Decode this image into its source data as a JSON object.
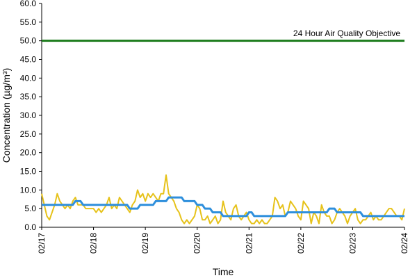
{
  "chart_data": {
    "type": "line",
    "title": "",
    "xlabel": "Time",
    "ylabel": "Concentration (µg/m³)",
    "ylim": [
      0,
      60
    ],
    "yticks": [
      "0.0",
      "5.0",
      "10.0",
      "15.0",
      "20.0",
      "25.0",
      "30.0",
      "35.0",
      "40.0",
      "45.0",
      "50.0",
      "55.0",
      "60.0"
    ],
    "xticks": [
      "02/17",
      "02/18",
      "02/19",
      "02/20",
      "02/21",
      "02/22",
      "02/23",
      "02/24"
    ],
    "grid": false,
    "legend": "none",
    "objective": {
      "label": "24 Hour Air Quality Objective",
      "value": 50,
      "color": "#1a7a1a"
    },
    "series": [
      {
        "color": "#e6c21a",
        "x": [
          0,
          0.05,
          0.1,
          0.15,
          0.2,
          0.25,
          0.3,
          0.35,
          0.4,
          0.45,
          0.5,
          0.55,
          0.6,
          0.65,
          0.7,
          0.75,
          0.8,
          0.85,
          0.9,
          0.95,
          1.0,
          1.05,
          1.1,
          1.15,
          1.2,
          1.25,
          1.3,
          1.35,
          1.4,
          1.45,
          1.5,
          1.55,
          1.6,
          1.65,
          1.7,
          1.75,
          1.8,
          1.85,
          1.9,
          1.95,
          2.0,
          2.05,
          2.1,
          2.15,
          2.2,
          2.25,
          2.3,
          2.35,
          2.4,
          2.45,
          2.5,
          2.55,
          2.6,
          2.65,
          2.7,
          2.75,
          2.8,
          2.85,
          2.9,
          2.95,
          3.0,
          3.05,
          3.1,
          3.15,
          3.2,
          3.25,
          3.3,
          3.35,
          3.4,
          3.45,
          3.5,
          3.55,
          3.6,
          3.65,
          3.7,
          3.75,
          3.8,
          3.85,
          3.9,
          3.95,
          4.0,
          4.05,
          4.1,
          4.15,
          4.2,
          4.25,
          4.3,
          4.35,
          4.4,
          4.45,
          4.5,
          4.55,
          4.6,
          4.65,
          4.7,
          4.75,
          4.8,
          4.85,
          4.9,
          4.95,
          5.0,
          5.05,
          5.1,
          5.15,
          5.2,
          5.25,
          5.3,
          5.35,
          5.4,
          5.45,
          5.5,
          5.55,
          5.6,
          5.65,
          5.7,
          5.75,
          5.8,
          5.85,
          5.9,
          5.95,
          6.0,
          6.05,
          6.1,
          6.15,
          6.2,
          6.25,
          6.3,
          6.35,
          6.4,
          6.45,
          6.5,
          6.55,
          6.6,
          6.65,
          6.7,
          6.75,
          6.8,
          6.85,
          6.9,
          6.95,
          7.0
        ],
        "values": [
          9,
          6,
          3,
          2,
          4,
          6,
          9,
          7,
          6,
          5,
          6,
          5,
          7,
          8,
          6,
          6,
          6,
          5,
          5,
          5,
          5,
          4,
          5,
          4,
          5,
          6,
          8,
          5,
          6,
          5,
          8,
          7,
          6,
          5,
          4,
          6,
          7,
          10,
          8,
          9,
          7,
          9,
          8,
          9,
          8,
          7,
          9,
          9,
          14,
          9,
          8,
          7,
          5,
          4,
          2,
          1,
          2,
          1,
          2,
          3,
          6,
          5,
          2,
          2,
          3,
          1,
          2,
          3,
          1,
          2,
          7,
          4,
          3,
          2,
          5,
          6,
          3,
          2,
          3,
          4,
          2,
          1,
          1,
          2,
          1,
          2,
          1,
          1,
          2,
          3,
          8,
          7,
          5,
          6,
          3,
          4,
          7,
          6,
          5,
          3,
          2,
          7,
          6,
          5,
          1,
          4,
          3,
          1,
          6,
          4,
          3,
          3,
          1,
          2,
          4,
          5,
          4,
          3,
          1,
          3,
          4,
          5,
          2,
          1,
          2,
          2,
          3,
          4,
          2,
          3,
          2,
          2,
          3,
          4,
          5,
          5,
          4,
          3,
          3,
          2,
          5
        ],
        "step": 0.05
      },
      {
        "color": "#2e8fdc",
        "values": [
          6,
          6,
          6,
          6,
          6,
          6,
          6,
          6,
          6,
          6,
          6,
          6,
          6,
          7,
          7,
          7,
          6,
          6,
          6,
          6,
          6,
          6,
          6,
          6,
          6,
          6,
          6,
          6,
          6,
          6,
          6,
          6,
          6,
          6,
          5,
          5,
          5,
          5,
          6,
          6,
          6,
          6,
          6,
          6,
          7,
          7,
          7,
          7,
          7,
          8,
          8,
          8,
          8,
          8,
          8,
          7,
          7,
          7,
          7,
          7,
          6,
          6,
          6,
          5,
          5,
          5,
          4,
          4,
          4,
          4,
          3,
          3,
          3,
          3,
          3,
          3,
          3,
          3,
          3,
          3,
          4,
          4,
          3,
          3,
          3,
          3,
          3,
          3,
          3,
          3,
          3,
          3,
          3,
          3,
          3,
          4,
          4,
          4,
          4,
          4,
          4,
          4,
          4,
          4,
          4,
          4,
          4,
          4,
          4,
          4,
          4,
          5,
          5,
          5,
          4,
          4,
          4,
          4,
          4,
          4,
          4,
          4,
          4,
          4,
          3,
          3,
          3,
          3,
          3,
          3,
          3,
          3,
          3,
          3,
          3,
          3,
          3,
          3,
          3,
          3,
          3
        ]
      }
    ]
  }
}
